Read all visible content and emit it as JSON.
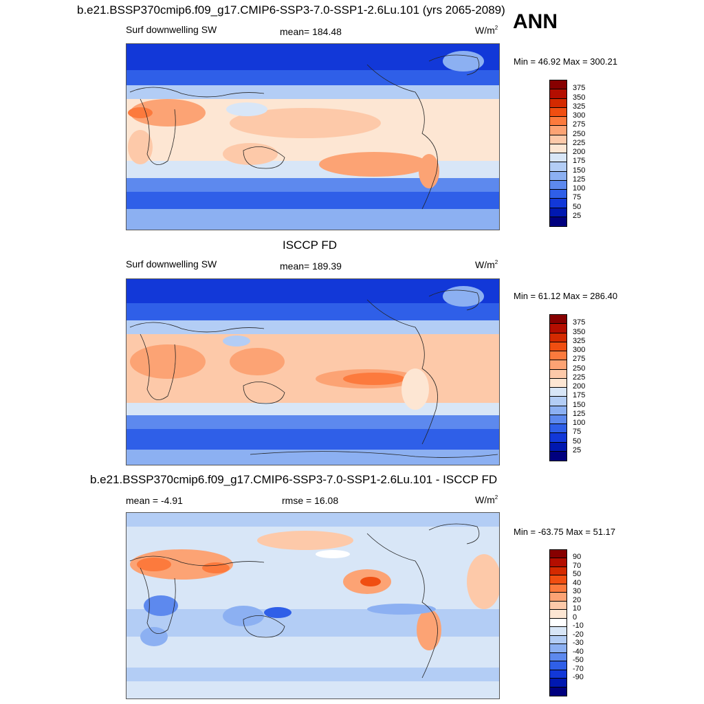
{
  "ann_label": "ANN",
  "panels": [
    {
      "title": "b.e21.BSSP370cmip6.f09_g17.CMIP6-SSP3-7.0-SSP1-2.6Lu.101 (yrs 2065-2089)",
      "left_label": "Surf downwelling SW",
      "center_label": "mean= 184.48",
      "units": "W/m",
      "units_sup": "2",
      "minmax": "Min =  46.92 Max = 300.21",
      "colorbar": {
        "colors": [
          "#870000",
          "#b40e00",
          "#d42a00",
          "#f04e11",
          "#fc7a3d",
          "#fca374",
          "#fdc9a9",
          "#fde6d3",
          "#d8e6f7",
          "#b3cdf5",
          "#8cb0f2",
          "#5d89ee",
          "#2f5fe8",
          "#1238d8",
          "#0018b0",
          "#00007f"
        ],
        "labels": [
          "375",
          "350",
          "325",
          "300",
          "275",
          "250",
          "225",
          "200",
          "175",
          "150",
          "125",
          "100",
          "75",
          "50",
          "25"
        ]
      }
    },
    {
      "title": "ISCCP FD",
      "left_label": "Surf downwelling SW",
      "center_label": "mean= 189.39",
      "units": "W/m",
      "units_sup": "2",
      "minmax": "Min =  61.12 Max = 286.40",
      "colorbar": {
        "colors": [
          "#870000",
          "#b40e00",
          "#d42a00",
          "#f04e11",
          "#fc7a3d",
          "#fca374",
          "#fdc9a9",
          "#fde6d3",
          "#d8e6f7",
          "#b3cdf5",
          "#8cb0f2",
          "#5d89ee",
          "#2f5fe8",
          "#1238d8",
          "#0018b0",
          "#00007f"
        ],
        "labels": [
          "375",
          "350",
          "325",
          "300",
          "275",
          "250",
          "225",
          "200",
          "175",
          "150",
          "125",
          "100",
          "75",
          "50",
          "25"
        ]
      }
    },
    {
      "title": "b.e21.BSSP370cmip6.f09_g17.CMIP6-SSP3-7.0-SSP1-2.6Lu.101 - ISCCP FD",
      "left_label": "mean =  -4.91",
      "center_label": "rmse =  16.08",
      "units": "W/m",
      "units_sup": "2",
      "minmax": "Min = -63.75 Max =  51.17",
      "colorbar": {
        "colors": [
          "#870000",
          "#b40e00",
          "#d42a00",
          "#f04e11",
          "#fc7a3d",
          "#fca374",
          "#fdc9a9",
          "#fde6d3",
          "#ffffff",
          "#d8e6f7",
          "#b3cdf5",
          "#8cb0f2",
          "#5d89ee",
          "#2f5fe8",
          "#1238d8",
          "#0018b0",
          "#00007f"
        ],
        "labels": [
          "90",
          "70",
          "50",
          "40",
          "30",
          "20",
          "10",
          "0",
          "-10",
          "-20",
          "-30",
          "-40",
          "-50",
          "-70",
          "-90"
        ]
      }
    }
  ]
}
